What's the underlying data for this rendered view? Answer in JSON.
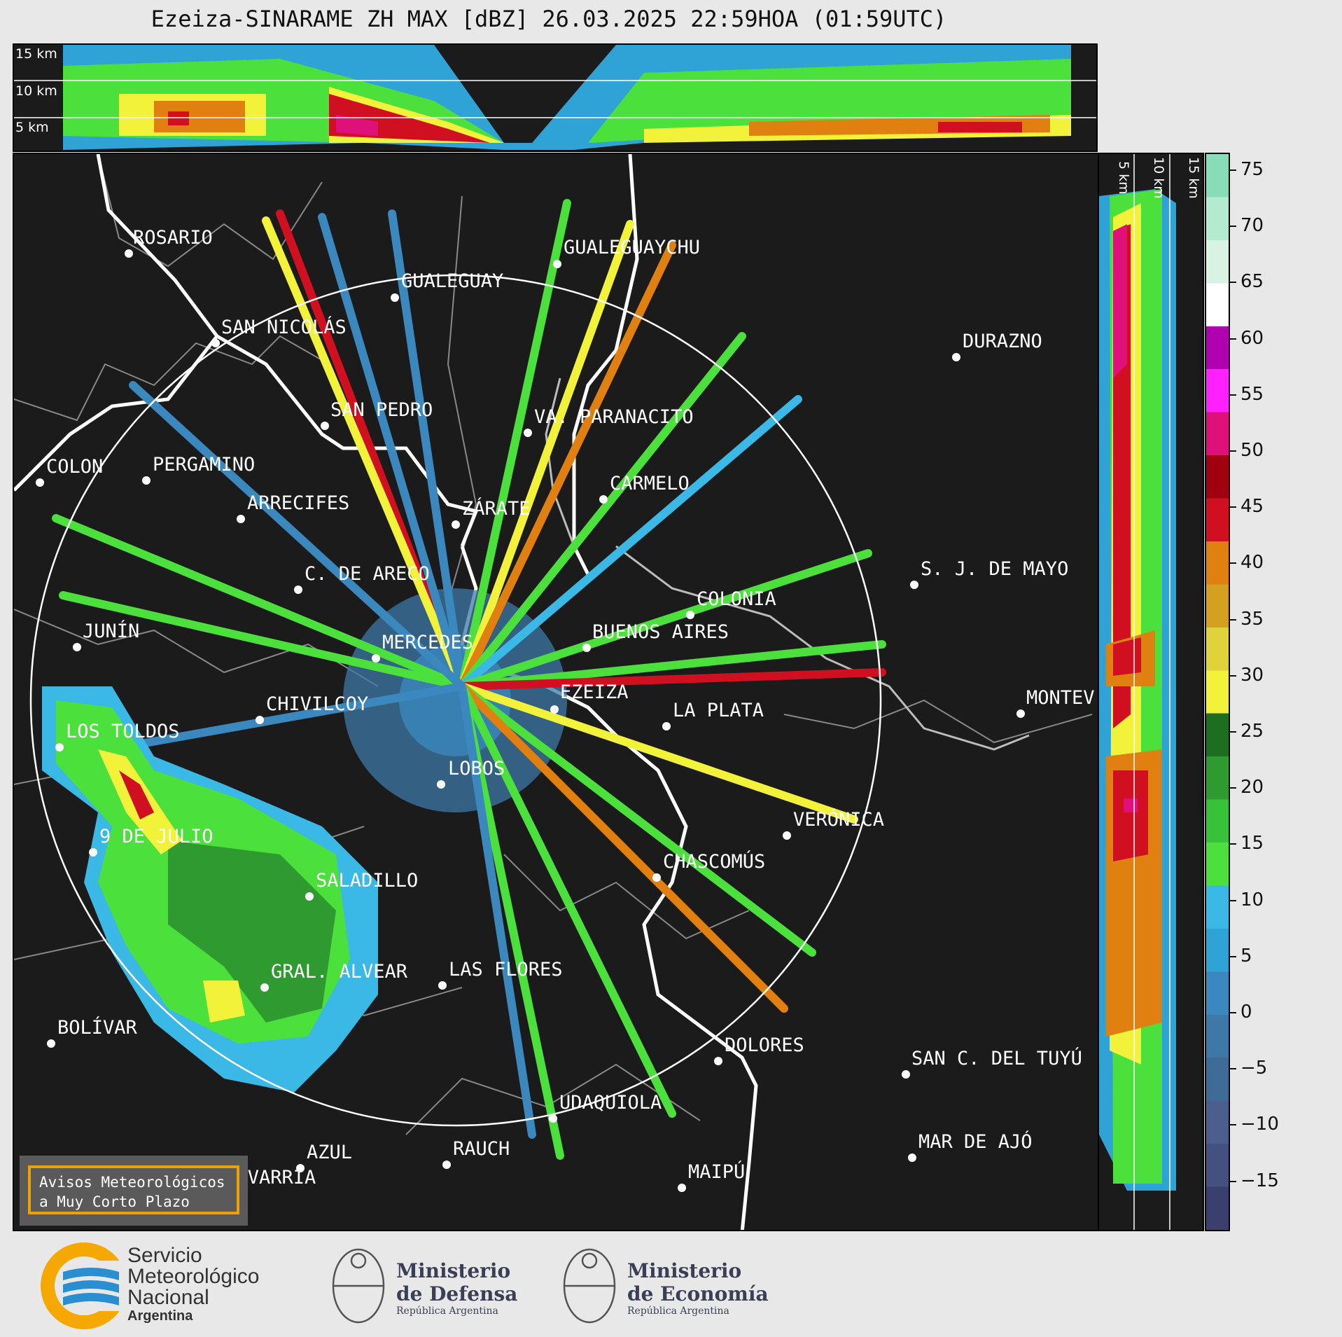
{
  "title": "Ezeiza-SINARAME ZH MAX [dBZ] 26.03.2025 22:59HOA (01:59UTC)",
  "top_panel": {
    "height_labels": [
      "15 km",
      "10 km",
      "5 km"
    ]
  },
  "right_panel": {
    "height_labels": [
      "5 km",
      "10 km",
      "15 km"
    ]
  },
  "colorbar": {
    "unit": "dBZ",
    "ticks": [
      "75",
      "70",
      "65",
      "60",
      "55",
      "50",
      "45",
      "40",
      "35",
      "30",
      "25",
      "20",
      "15",
      "10",
      "5",
      "0",
      "−5",
      "−10",
      "−15"
    ],
    "colors": [
      "#3b3f6e",
      "#44507f",
      "#4a5f8e",
      "#3f6b98",
      "#3d78a8",
      "#3a88bd",
      "#2fa3d6",
      "#3ab8e6",
      "#4be03c",
      "#38c23a",
      "#2e9a30",
      "#1e6e22",
      "#f2f23a",
      "#e0d23a",
      "#d4a020",
      "#e08010",
      "#d01020",
      "#a00010",
      "#e0107a",
      "#ff20ff",
      "#b000b0",
      "#ffffff",
      "#d8f2e4",
      "#b4ead0",
      "#88dcb8"
    ]
  },
  "cities": [
    {
      "name": "ROSARIO"
    },
    {
      "name": "GUALEGUAYCHU"
    },
    {
      "name": "GUALEGUAY"
    },
    {
      "name": "SAN NICOLÁS"
    },
    {
      "name": "DURAZNO"
    },
    {
      "name": "SAN PEDRO"
    },
    {
      "name": "VA. PARANACITO"
    },
    {
      "name": "COLON"
    },
    {
      "name": "PERGAMINO"
    },
    {
      "name": "CARMELO"
    },
    {
      "name": "ARRECIFES"
    },
    {
      "name": "ZÁRATE"
    },
    {
      "name": "S. J. DE MAYO"
    },
    {
      "name": "C. DE ARECO"
    },
    {
      "name": "COLONIA"
    },
    {
      "name": "JUNÍN"
    },
    {
      "name": "BUENOS AIRES"
    },
    {
      "name": "MERCEDES"
    },
    {
      "name": "EZEIZA"
    },
    {
      "name": "MONTEV"
    },
    {
      "name": "CHIVILCOY"
    },
    {
      "name": "LA PLATA"
    },
    {
      "name": "LOS TOLDOS"
    },
    {
      "name": "LOBOS"
    },
    {
      "name": "VERÓNICA"
    },
    {
      "name": "9 DE JULIO"
    },
    {
      "name": "CHASCOMÚS"
    },
    {
      "name": "SALADILLO"
    },
    {
      "name": "GRAL. ALVEAR"
    },
    {
      "name": "LAS FLORES"
    },
    {
      "name": "BOLÍVAR"
    },
    {
      "name": "DOLORES"
    },
    {
      "name": "SAN C. DEL TUYÚ"
    },
    {
      "name": "UDAQUIOLA"
    },
    {
      "name": "MAR DE AJÓ"
    },
    {
      "name": "AZUL"
    },
    {
      "name": "RAUCH"
    },
    {
      "name": "OLAVARRÍA"
    },
    {
      "name": "MAIPÚ"
    }
  ],
  "aviso": {
    "line1": "Avisos Meteorológicos",
    "line2": "a Muy Corto Plazo"
  },
  "logos": {
    "smn": {
      "line1": "Servicio",
      "line2": "Meteorológico",
      "line3": "Nacional",
      "line4": "Argentina"
    },
    "defensa": {
      "line1": "Ministerio",
      "line2": "de Defensa",
      "line3": "República Argentina"
    },
    "economia": {
      "line1": "Ministerio",
      "line2": "de Economía",
      "line3": "República Argentina"
    }
  }
}
